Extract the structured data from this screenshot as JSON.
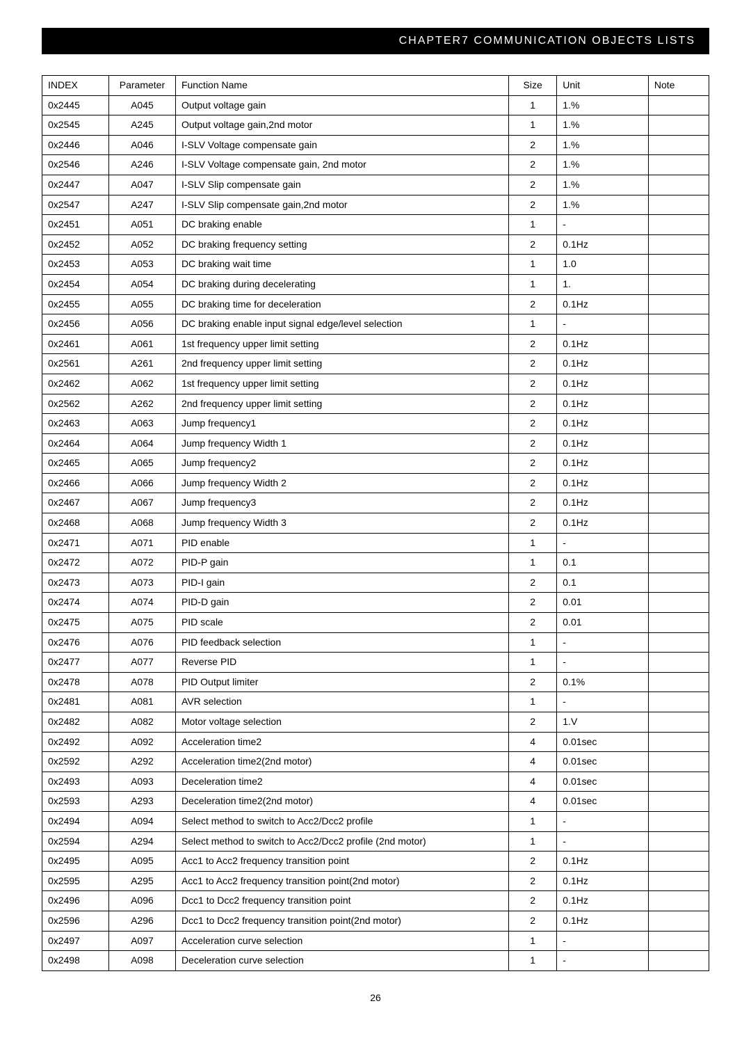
{
  "header": {
    "title": "CHAPTER7  COMMUNICATION  OBJECTS  LISTS"
  },
  "table": {
    "columns": [
      "INDEX",
      "Parameter",
      "Function Name",
      "Size",
      "Unit",
      "Note"
    ],
    "rows": [
      {
        "index": "0x2445",
        "param": "A045",
        "func": "Output voltage gain",
        "size": "1",
        "unit": "1.%",
        "note": ""
      },
      {
        "index": "0x2545",
        "param": "A245",
        "func": "Output voltage gain,2nd motor",
        "size": "1",
        "unit": "1.%",
        "note": ""
      },
      {
        "index": "0x2446",
        "param": "A046",
        "func": "I-SLV Voltage compensate  gain",
        "size": "2",
        "unit": "1.%",
        "note": ""
      },
      {
        "index": "0x2546",
        "param": "A246",
        "func": "I-SLV Voltage compensate gain, 2nd motor",
        "size": "2",
        "unit": "1.%",
        "note": ""
      },
      {
        "index": "0x2447",
        "param": "A047",
        "func": "I-SLV Slip compensate  gain",
        "size": "2",
        "unit": "1.%",
        "note": ""
      },
      {
        "index": "0x2547",
        "param": "A247",
        "func": "I-SLV Slip compensate  gain,2nd motor",
        "size": "2",
        "unit": "1.%",
        "note": ""
      },
      {
        "index": "0x2451",
        "param": "A051",
        "func": "DC braking enable",
        "size": "1",
        "unit": "-",
        "note": ""
      },
      {
        "index": "0x2452",
        "param": "A052",
        "func": "DC braking frequency setting",
        "size": "2",
        "unit": "0.1Hz",
        "note": ""
      },
      {
        "index": "0x2453",
        "param": "A053",
        "func": "DC braking wait time",
        "size": "1",
        "unit": "1.0",
        "note": ""
      },
      {
        "index": "0x2454",
        "param": "A054",
        "func": "DC braking during decelerating",
        "size": "1",
        "unit": "1.",
        "note": ""
      },
      {
        "index": "0x2455",
        "param": "A055",
        "func": "DC braking time for deceleration",
        "size": "2",
        "unit": "0.1Hz",
        "note": ""
      },
      {
        "index": "0x2456",
        "param": "A056",
        "func": "DC braking enable input signal edge/level selection",
        "size": "1",
        "unit": "-",
        "note": ""
      },
      {
        "index": "0x2461",
        "param": "A061",
        "func": "1st frequency upper limit setting",
        "size": "2",
        "unit": "0.1Hz",
        "note": ""
      },
      {
        "index": "0x2561",
        "param": "A261",
        "func": "2nd frequency  upper limit setting",
        "size": "2",
        "unit": "0.1Hz",
        "note": ""
      },
      {
        "index": "0x2462",
        "param": "A062",
        "func": "1st frequency upper limit setting",
        "size": "2",
        "unit": "0.1Hz",
        "note": ""
      },
      {
        "index": "0x2562",
        "param": "A262",
        "func": "2nd frequency upper limit setting",
        "size": "2",
        "unit": "0.1Hz",
        "note": ""
      },
      {
        "index": "0x2463",
        "param": "A063",
        "func": "Jump frequency1",
        "size": "2",
        "unit": "0.1Hz",
        "note": ""
      },
      {
        "index": "0x2464",
        "param": "A064",
        "func": "Jump frequency Width 1",
        "size": "2",
        "unit": "0.1Hz",
        "note": ""
      },
      {
        "index": "0x2465",
        "param": "A065",
        "func": "Jump frequency2",
        "size": "2",
        "unit": "0.1Hz",
        "note": ""
      },
      {
        "index": "0x2466",
        "param": "A066",
        "func": "Jump frequency Width 2",
        "size": "2",
        "unit": "0.1Hz",
        "note": ""
      },
      {
        "index": "0x2467",
        "param": "A067",
        "func": "Jump frequency3",
        "size": "2",
        "unit": "0.1Hz",
        "note": ""
      },
      {
        "index": "0x2468",
        "param": "A068",
        "func": "Jump frequency Width 3",
        "size": "2",
        "unit": "0.1Hz",
        "note": ""
      },
      {
        "index": "0x2471",
        "param": "A071",
        "func": "PID enable",
        "size": "1",
        "unit": "-",
        "note": ""
      },
      {
        "index": "0x2472",
        "param": "A072",
        "func": "PID-P gain",
        "size": "1",
        "unit": "0.1",
        "note": ""
      },
      {
        "index": "0x2473",
        "param": "A073",
        "func": "PID-I gain",
        "size": "2",
        "unit": "0.1",
        "note": ""
      },
      {
        "index": "0x2474",
        "param": "A074",
        "func": "PID-D gain",
        "size": "2",
        "unit": "0.01",
        "note": ""
      },
      {
        "index": "0x2475",
        "param": "A075",
        "func": "PID scale",
        "size": "2",
        "unit": "0.01",
        "note": ""
      },
      {
        "index": "0x2476",
        "param": "A076",
        "func": "PID feedback selection",
        "size": "1",
        "unit": "-",
        "note": ""
      },
      {
        "index": "0x2477",
        "param": "A077",
        "func": "Reverse PID",
        "size": "1",
        "unit": "-",
        "note": ""
      },
      {
        "index": "0x2478",
        "param": "A078",
        "func": "PID Output limiter",
        "size": "2",
        "unit": "0.1%",
        "note": ""
      },
      {
        "index": "0x2481",
        "param": "A081",
        "func": "AVR selection",
        "size": "1",
        "unit": "-",
        "note": ""
      },
      {
        "index": "0x2482",
        "param": "A082",
        "func": "Motor voltage selection",
        "size": "2",
        "unit": "1.V",
        "note": ""
      },
      {
        "index": "0x2492",
        "param": "A092",
        "func": "Acceleration time2",
        "size": "4",
        "unit": "0.01sec",
        "note": ""
      },
      {
        "index": "0x2592",
        "param": "A292",
        "func": "Acceleration time2(2nd motor)",
        "size": "4",
        "unit": "0.01sec",
        "note": ""
      },
      {
        "index": "0x2493",
        "param": "A093",
        "func": "Deceleration time2",
        "size": "4",
        "unit": "0.01sec",
        "note": ""
      },
      {
        "index": "0x2593",
        "param": "A293",
        "func": "Deceleration time2(2nd motor)",
        "size": "4",
        "unit": "0.01sec",
        "note": ""
      },
      {
        "index": "0x2494",
        "param": "A094",
        "func": "Select method to switch to Acc2/Dcc2 profile",
        "size": "1",
        "unit": "-",
        "note": ""
      },
      {
        "index": "0x2594",
        "param": "A294",
        "func": "Select method to switch to Acc2/Dcc2 profile (2nd motor)",
        "size": "1",
        "unit": "-",
        "note": ""
      },
      {
        "index": "0x2495",
        "param": "A095",
        "func": "Acc1 to Acc2 frequency transition point",
        "size": "2",
        "unit": "0.1Hz",
        "note": ""
      },
      {
        "index": "0x2595",
        "param": "A295",
        "func": "Acc1 to Acc2 frequency transition point(2nd motor)",
        "size": "2",
        "unit": "0.1Hz",
        "note": ""
      },
      {
        "index": "0x2496",
        "param": "A096",
        "func": "Dcc1 to Dcc2 frequency transition point",
        "size": "2",
        "unit": "0.1Hz",
        "note": ""
      },
      {
        "index": "0x2596",
        "param": "A296",
        "func": "Dcc1 to Dcc2 frequency transition point(2nd motor)",
        "size": "2",
        "unit": "0.1Hz",
        "note": ""
      },
      {
        "index": "0x2497",
        "param": "A097",
        "func": "Acceleration curve selection",
        "size": "1",
        "unit": "-",
        "note": ""
      },
      {
        "index": "0x2498",
        "param": "A098",
        "func": "Deceleration curve selection",
        "size": "1",
        "unit": "-",
        "note": ""
      }
    ]
  },
  "page_number": "26"
}
